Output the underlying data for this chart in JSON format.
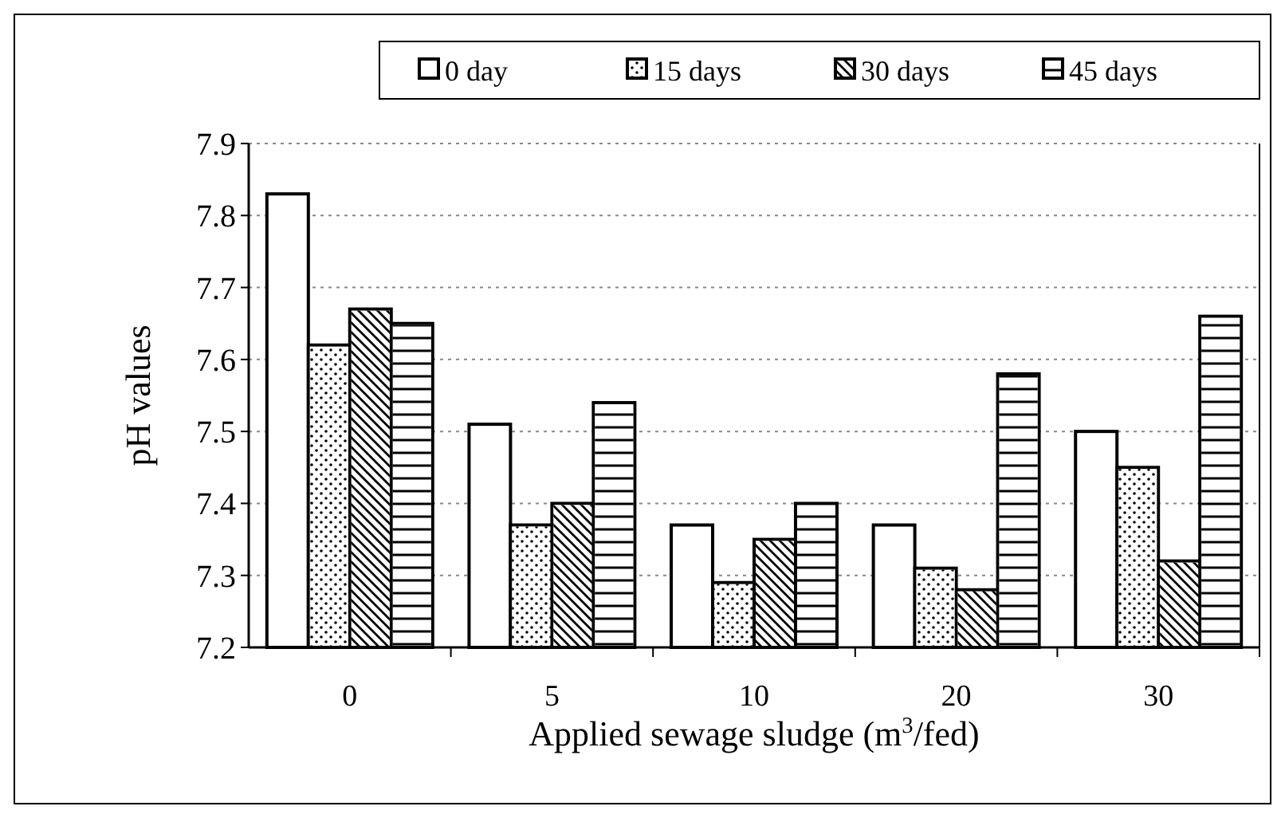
{
  "chart_data": {
    "type": "bar",
    "xlabel": "Applied sewage sludge (m$^{3}$/fed)",
    "ylabel": "pH values",
    "categories": [
      "0",
      "5",
      "10",
      "20",
      "30"
    ],
    "series": [
      {
        "name": "0 day",
        "color": "#ffffff",
        "values": [
          7.83,
          7.51,
          7.37,
          7.37,
          7.5
        ]
      },
      {
        "name": "15 days",
        "color": "#ffffff",
        "values": [
          7.62,
          7.37,
          7.29,
          7.31,
          7.45
        ]
      },
      {
        "name": "30 days",
        "color": "#ffffff",
        "values": [
          7.67,
          7.4,
          7.35,
          7.28,
          7.32
        ]
      },
      {
        "name": "45 days",
        "color": "#ffffff",
        "values": [
          7.65,
          7.54,
          7.4,
          7.58,
          7.66
        ]
      }
    ],
    "ylim": [
      7.2,
      7.9
    ],
    "yticks": [
      7.2,
      7.3,
      7.4,
      7.5,
      7.6,
      7.7,
      7.8,
      7.9
    ],
    "grid": "y",
    "legend": "top"
  }
}
